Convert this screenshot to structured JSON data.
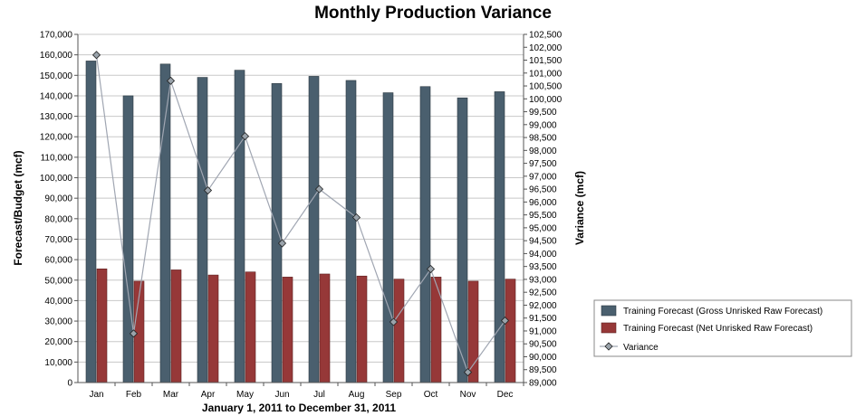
{
  "chart_data": {
    "type": "bar",
    "title": "Monthly Production Variance",
    "xlabel": "January 1, 2011 to December 31, 2011",
    "ylabel": "Forecast/Budget (mcf)",
    "y2label": "Variance (mcf)",
    "categories": [
      "Jan",
      "Feb",
      "Mar",
      "Apr",
      "May",
      "Jun",
      "Jul",
      "Aug",
      "Sep",
      "Oct",
      "Nov",
      "Dec"
    ],
    "ylim": [
      0,
      170000
    ],
    "yticks": [
      "0",
      "10,000",
      "20,000",
      "30,000",
      "40,000",
      "50,000",
      "60,000",
      "70,000",
      "80,000",
      "90,000",
      "100,000",
      "110,000",
      "120,000",
      "130,000",
      "140,000",
      "150,000",
      "160,000",
      "170,000"
    ],
    "y2lim": [
      89000,
      102500
    ],
    "y2ticks": [
      "89,000",
      "89,500",
      "90,000",
      "90,500",
      "91,000",
      "91,500",
      "92,000",
      "92,500",
      "93,000",
      "93,500",
      "94,000",
      "94,500",
      "95,000",
      "95,500",
      "96,000",
      "96,500",
      "97,000",
      "97,500",
      "98,000",
      "98,500",
      "99,000",
      "99,500",
      "100,000",
      "100,500",
      "101,000",
      "101,500",
      "102,000",
      "102,500"
    ],
    "grid": true,
    "legend_position": "right",
    "series": [
      {
        "name": "Training Forecast (Gross Unrisked Raw Forecast)",
        "kind": "bar",
        "axis": "left",
        "color": "#4a5f6e",
        "values": [
          157000,
          140000,
          155500,
          149000,
          152500,
          146000,
          149500,
          147500,
          141500,
          144500,
          139000,
          142000
        ]
      },
      {
        "name": "Training Forecast (Net Unrisked Raw Forecast)",
        "kind": "bar",
        "axis": "left",
        "color": "#963838",
        "values": [
          55500,
          49500,
          55000,
          52500,
          54000,
          51500,
          53000,
          52000,
          50500,
          51500,
          49500,
          50500
        ]
      },
      {
        "name": "Variance",
        "kind": "line",
        "axis": "right",
        "color": "#a0a6b2",
        "marker_color": "#9aa3ab",
        "values": [
          101700,
          90900,
          100700,
          96450,
          98550,
          94400,
          96500,
          95400,
          91350,
          93400,
          89400,
          91400
        ]
      }
    ]
  }
}
